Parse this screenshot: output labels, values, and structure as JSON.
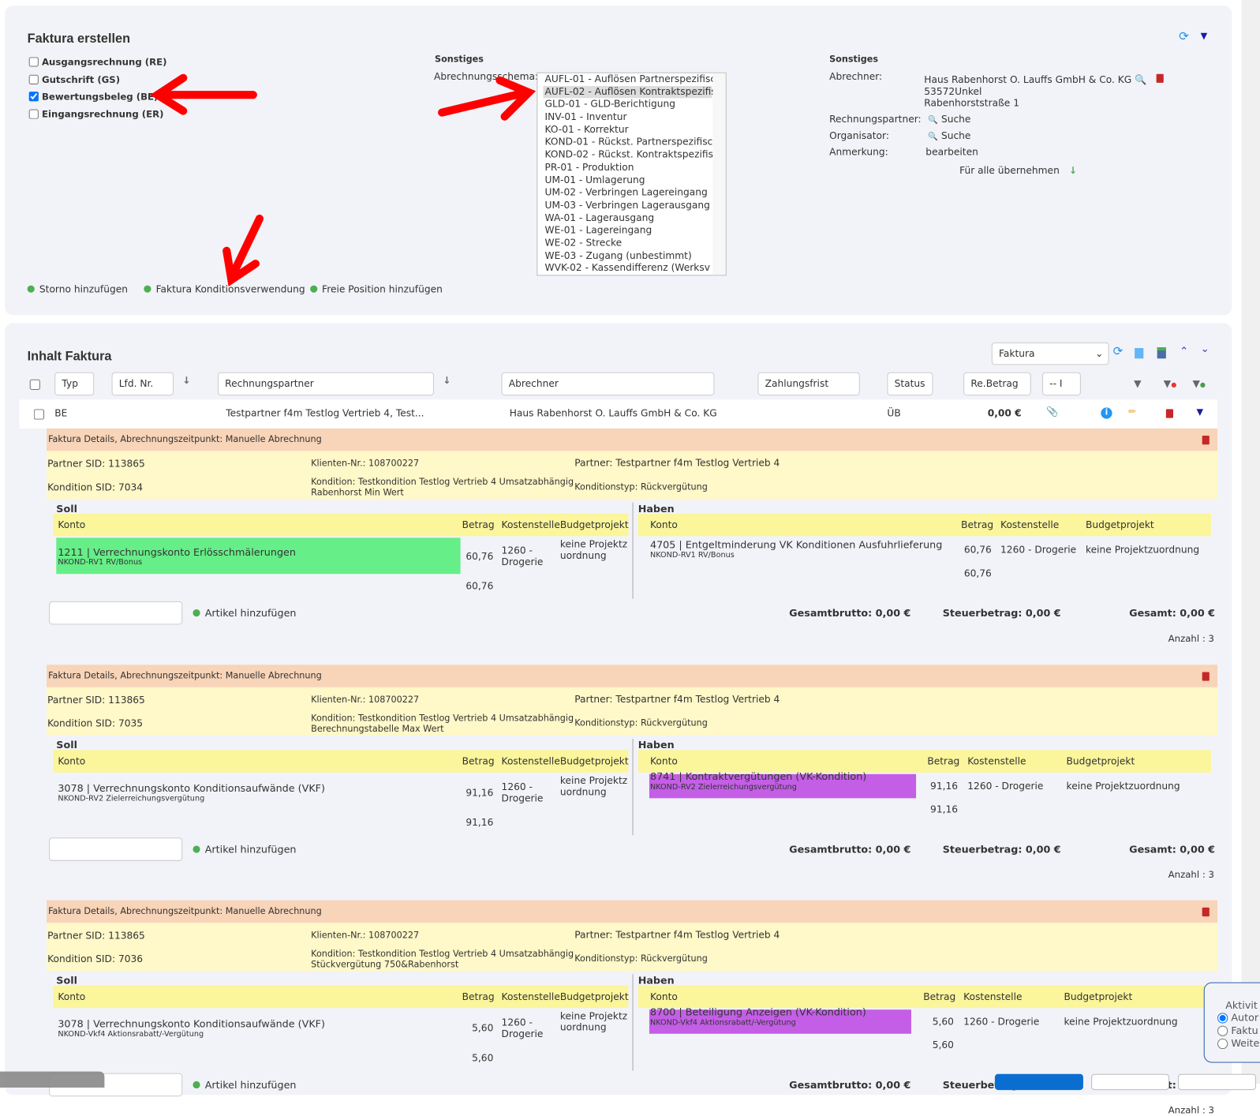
{
  "create": {
    "title": "Faktura erstellen",
    "types": [
      {
        "label": "Ausgangsrechnung (RE)",
        "checked": false
      },
      {
        "label": "Gutschrift (GS)",
        "checked": false
      },
      {
        "label": "Bewertungsbeleg (BE)",
        "checked": true
      },
      {
        "label": "Eingangsrechnung (ER)",
        "checked": false
      }
    ],
    "sonstiges1": {
      "title": "Sonstiges",
      "schema_label": "Abrechnungsschema:",
      "options": [
        "AUFL-01 - Auflösen Partnerspezifisc",
        "AUFL-02 - Auflösen Kontraktspezifis",
        "GLD-01 - GLD-Berichtigung",
        "INV-01 - Inventur",
        "KO-01 - Korrektur",
        "KOND-01 - Rückst. Partnerspezifisc",
        "KOND-02 - Rückst. Kontraktspezifis",
        "PR-01 - Produktion",
        "UM-01 - Umlagerung",
        "UM-02 - Verbringen Lagereingang",
        "UM-03 - Verbringen Lagerausgang",
        "WA-01 - Lagerausgang",
        "WE-01 - Lagereingang",
        "WE-02 - Strecke",
        "WE-03 - Zugang (unbestimmt)",
        "WVK-02 - Kassendifferenz (Werksv"
      ],
      "selected": "AUFL-02 - Auflösen Kontraktspezifis"
    },
    "sonstiges2": {
      "title": "Sonstiges",
      "abrechner_label": "Abrechner:",
      "abrechner_name": "Haus Rabenhorst O. Lauffs GmbH & Co. KG",
      "abrechner_city": "53572Unkel",
      "abrechner_street": "Rabenhorststraße 1",
      "rp_label": "Rechnungspartner:",
      "rp_value": "Suche",
      "org_label": "Organisator:",
      "org_value": "Suche",
      "anm_label": "Anmerkung:",
      "anm_value": "bearbeiten",
      "apply_all": "Für alle übernehmen"
    },
    "actions": [
      "Storno hinzufügen",
      "Faktura Konditionsverwendung",
      "Freie Position hinzufügen"
    ]
  },
  "content": {
    "title": "Inhalt Faktura",
    "view_select": "Faktura",
    "filters": {
      "typ": "Typ",
      "lfd": "Lfd. Nr.",
      "rp": "Rechnungspartner",
      "abr": "Abrechner",
      "zf": "Zahlungsfrist",
      "status": "Status",
      "betrag": "Re.Betrag",
      "sel": "-- I"
    },
    "row": {
      "typ": "BE",
      "rp": "Testpartner f4m Testlog Vertrieb 4, Test...",
      "abr": "Haus Rabenhorst O. Lauffs GmbH & Co. KG",
      "status": "ÜB",
      "betrag": "0,00 €"
    },
    "labels": {
      "soll": "Soll",
      "haben": "Haben",
      "konto": "Konto",
      "betrag": "Betrag",
      "kst": "Kostenstelle",
      "bp": "Budgetprojekt",
      "add_article": "Artikel hinzufügen",
      "brutto": "Gesamtbrutto: 0,00 €",
      "steuer": "Steuerbetrag: 0,00 €",
      "gesamt": "Gesamt: 0,00 €",
      "anzahl": "Anzahl : 3"
    },
    "blocks": [
      {
        "header": "Faktura Details, Abrechnungszeitpunkt: Manuelle Abrechnung",
        "partner_sid": "Partner SID: 113865",
        "klient": "Klienten-Nr.: 108700227",
        "partner": "Partner: Testpartner f4m Testlog Vertrieb 4",
        "kond_sid": "Kondition SID: 7034",
        "kond": "Kondition: Testkondition Testlog Vertrieb 4 Umsatzabhängig",
        "kond2": "Rabenhorst Min Wert",
        "kond_typ": "Konditionstyp: Rückvergütung",
        "soll": {
          "konto": "1211 | Verrechnungskonto Erlösschmälerungen",
          "sub": "NKOND-RV1 RV/Bonus",
          "betrag": "60,76",
          "kst": "1260 - Drogerie",
          "bp": "keine Projektzuordnung",
          "sum": "60,76",
          "highlight": "#66ee88"
        },
        "haben": {
          "konto": "4705 | Entgeltminderung VK Konditionen Ausfuhrlieferung",
          "sub": "NKOND-RV1 RV/Bonus",
          "betrag": "60,76",
          "kst": "1260 - Drogerie",
          "bp": "keine Projektzuordnung",
          "sum": "60,76",
          "highlight": ""
        }
      },
      {
        "header": "Faktura Details, Abrechnungszeitpunkt: Manuelle Abrechnung",
        "partner_sid": "Partner SID: 113865",
        "klient": "Klienten-Nr.: 108700227",
        "partner": "Partner: Testpartner f4m Testlog Vertrieb 4",
        "kond_sid": "Kondition SID: 7035",
        "kond": "Kondition: Testkondition Testlog Vertrieb 4 Umsatzabhängig",
        "kond2": "Berechnungstabelle Max Wert",
        "kond_typ": "Konditionstyp: Rückvergütung",
        "soll": {
          "konto": "3078 | Verrechnungskonto Konditionsaufwände (VKF)",
          "sub": "NKOND-RV2 Zielerreichungsvergütung",
          "betrag": "91,16",
          "kst": "1260 - Drogerie",
          "bp": "keine Projektzuordnung",
          "sum": "91,16",
          "highlight": ""
        },
        "haben": {
          "konto": "8741 | Kontraktvergütungen (VK-Kondition)",
          "sub": "NKOND-RV2 Zielerreichungsvergütung",
          "betrag": "91,16",
          "kst": "1260 - Drogerie",
          "bp": "keine Projektzuordnung",
          "sum": "91,16",
          "highlight": "#c45ee6"
        }
      },
      {
        "header": "Faktura Details, Abrechnungszeitpunkt: Manuelle Abrechnung",
        "partner_sid": "Partner SID: 113865",
        "klient": "Klienten-Nr.: 108700227",
        "partner": "Partner: Testpartner f4m Testlog Vertrieb 4",
        "kond_sid": "Kondition SID: 7036",
        "kond": "Kondition: Testkondition Testlog Vertrieb 4 Umsatzabhängig",
        "kond2": "Stückvergütung 750&Rabenhorst",
        "kond_typ": "Konditionstyp: Rückvergütung",
        "soll": {
          "konto": "3078 | Verrechnungskonto Konditionsaufwände (VKF)",
          "sub": "NKOND-Vkf4 Aktionsrabatt/-Vergütung",
          "betrag": "5,60",
          "kst": "1260 - Drogerie",
          "bp": "keine Projektzuordnung",
          "sum": "5,60",
          "highlight": ""
        },
        "haben": {
          "konto": "8700 | Beteiligung Anzeigen (VK-Kondition)",
          "sub": "NKOND-Vkf4 Aktionsrabatt/-Vergütung",
          "betrag": "5,60",
          "kst": "1260 - Drogerie",
          "bp": "keine Projektzuordnung",
          "sum": "5,60",
          "highlight": "#c45ee6"
        }
      }
    ]
  },
  "popup": {
    "title": "Aktivit",
    "options": [
      {
        "label": "Autor",
        "checked": true
      },
      {
        "label": "Faktu",
        "checked": false
      },
      {
        "label": "Weite",
        "checked": false
      }
    ]
  },
  "colors": {
    "panel": "#f2f3f8",
    "header": "#f8d4b8",
    "info": "#fff8c8",
    "table_head": "#fbf59c",
    "arrow": "#ff0000",
    "primary": "#0a6ed1"
  }
}
